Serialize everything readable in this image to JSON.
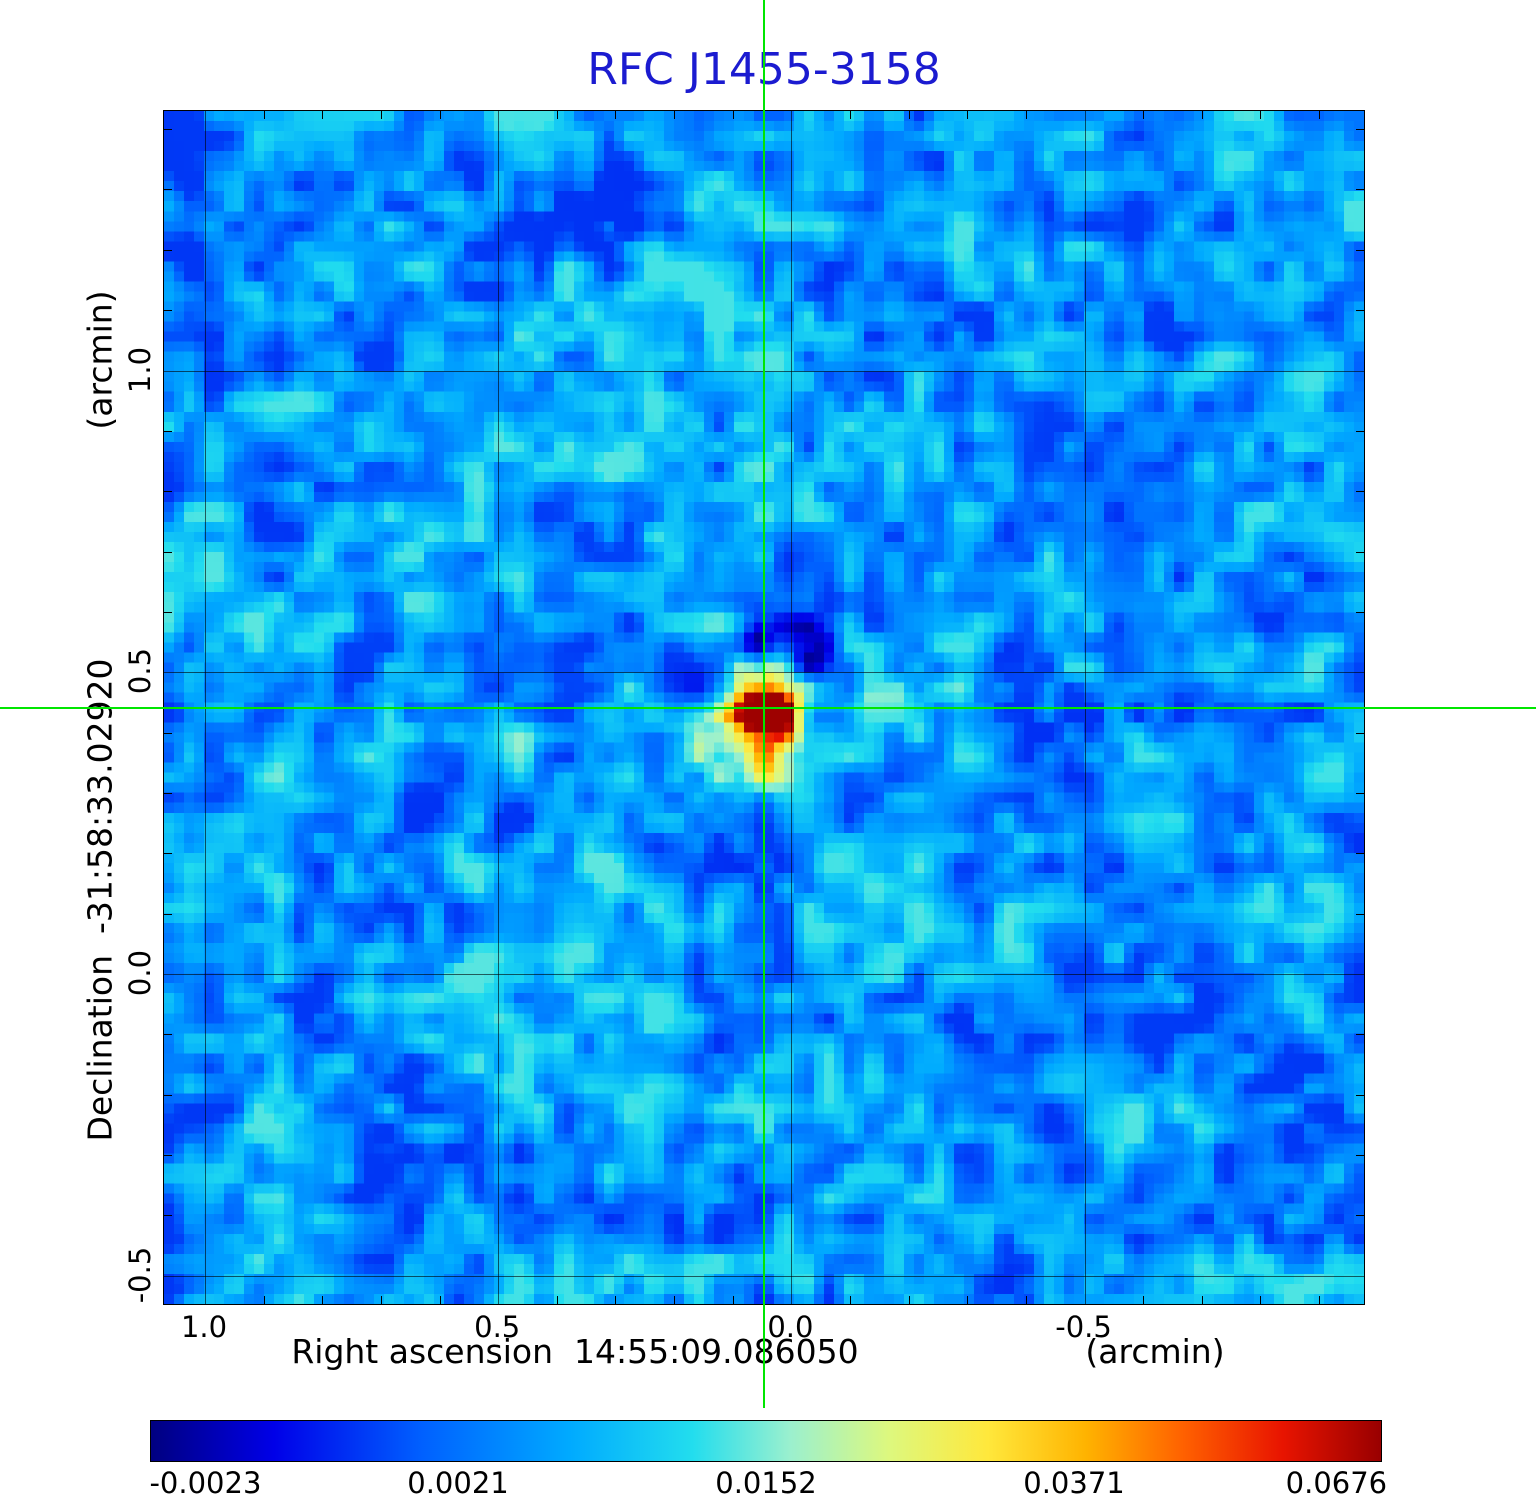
{
  "title": "RFC J1455-3158",
  "colors": {
    "title": "#1b1bd0",
    "crosshair": "#00e600",
    "grid": "#000000",
    "background": "#ffffff"
  },
  "axes": {
    "y_unit": "(arcmin)",
    "y_label": "Declination  -31:58:33.02920",
    "x_label": "Right ascension  14:55:09.086050",
    "x_unit": "(arcmin)"
  },
  "colorbar": {
    "labels": [
      "-0.0023",
      "0.0021",
      "0.0152",
      "0.0371",
      "0.0676"
    ],
    "stops": [
      {
        "p": 0.0,
        "color": "#000080"
      },
      {
        "p": 0.1,
        "color": "#0000e8"
      },
      {
        "p": 0.22,
        "color": "#0060ff"
      },
      {
        "p": 0.34,
        "color": "#00aaff"
      },
      {
        "p": 0.44,
        "color": "#22ddee"
      },
      {
        "p": 0.52,
        "color": "#9bf0ce"
      },
      {
        "p": 0.6,
        "color": "#ddf87e"
      },
      {
        "p": 0.68,
        "color": "#ffe83c"
      },
      {
        "p": 0.76,
        "color": "#ffb300"
      },
      {
        "p": 0.84,
        "color": "#ff6000"
      },
      {
        "p": 0.92,
        "color": "#e81400"
      },
      {
        "p": 1.0,
        "color": "#990000"
      }
    ]
  },
  "chart_data": {
    "type": "heatmap",
    "title": "RFC J1455-3158",
    "xlabel": "Right ascension 14:55:09.086050 (arcmin)",
    "ylabel": "Declination -31:58:33.02920 (arcmin)",
    "x_range_arcmin": [
      1.07,
      -0.98
    ],
    "y_range_arcmin": [
      1.43,
      -0.55
    ],
    "x_ticks": [
      {
        "label": "1.0",
        "value": 1.0
      },
      {
        "label": "0.5",
        "value": 0.5
      },
      {
        "label": "0.0",
        "value": 0.0
      },
      {
        "label": "-0.5",
        "value": -0.5
      }
    ],
    "y_ticks": [
      {
        "label": "1.0",
        "value": 1.0
      },
      {
        "label": "0.5",
        "value": 0.5
      },
      {
        "label": "0.0",
        "value": 0.0
      },
      {
        "label": "-0.5",
        "value": -0.5
      }
    ],
    "source": {
      "ra": "14:55:09.086050",
      "dec": "-31:58:33.02920",
      "peak_x_arcmin": 0.045,
      "peak_y_arcmin": 0.44,
      "peak_value_jy_per_beam": 0.0676
    },
    "crosshair_arcmin": {
      "x": 0.045,
      "y": 0.44
    },
    "colorbar_values": [
      -0.0023,
      0.0021,
      0.0152,
      0.0371,
      0.0676
    ],
    "colormap": "rainbow",
    "background_noise_level": 0.002,
    "grid": true,
    "negative_sidelobes": true,
    "legend_position": "bottom-colorbar"
  }
}
